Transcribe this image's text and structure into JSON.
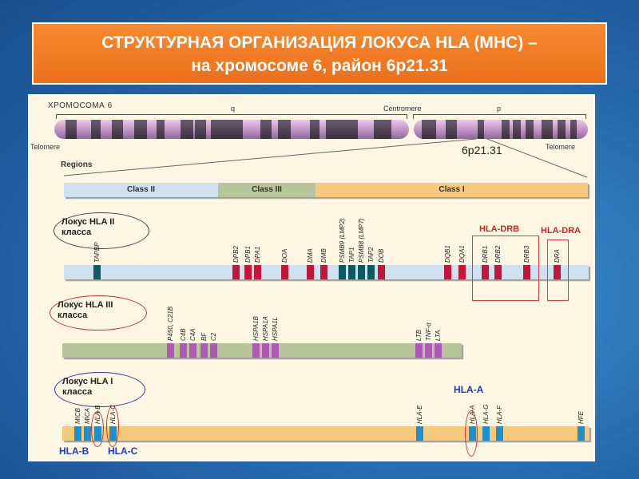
{
  "title": {
    "line1": "СТРУКТУРНАЯ ОРГАНИЗАЦИЯ ЛОКУСА HLA (МНС) –",
    "line2": "на хромосоме 6, район 6p21.31"
  },
  "chromosome": {
    "name": "ХРОМОСОМА 6",
    "q": "q",
    "p": "p",
    "centromere": "Centromere",
    "telomere_left": "Telomere",
    "telomere_right": "Telomere",
    "band": "6p21.31",
    "regions_label": "Regions"
  },
  "regions": [
    {
      "label": "Class II",
      "color": "#cfe0ee"
    },
    {
      "label": "Class III",
      "color": "#b8c49a"
    },
    {
      "label": "Class I",
      "color": "#f7c97a"
    }
  ],
  "class2": {
    "locus_label": "Локус HLA II",
    "locus_label2": "класса",
    "bar_color": "#cfe0ee",
    "group_drb": "HLA-DRB",
    "group_dra": "HLA-DRA",
    "genes": [
      {
        "n": "TAPBP",
        "c": "#0e5a60"
      },
      {
        "n": "DPB2",
        "c": "#c4153a"
      },
      {
        "n": "DPB1",
        "c": "#c4153a"
      },
      {
        "n": "DPA1",
        "c": "#c4153a"
      },
      {
        "n": "DOA",
        "c": "#c4153a"
      },
      {
        "n": "DMA",
        "c": "#c4153a"
      },
      {
        "n": "DMB",
        "c": "#c4153a"
      },
      {
        "n": "PSMB9 (LMP2)",
        "c": "#0e5a60"
      },
      {
        "n": "TAP1",
        "c": "#0e5a60"
      },
      {
        "n": "PSMB8 (LMP7)",
        "c": "#0e5a60"
      },
      {
        "n": "TAP2",
        "c": "#0e5a60"
      },
      {
        "n": "DOB",
        "c": "#c4153a"
      },
      {
        "n": "DQB1",
        "c": "#c4153a"
      },
      {
        "n": "DQA1",
        "c": "#c4153a"
      },
      {
        "n": "DRB1",
        "c": "#c4153a"
      },
      {
        "n": "DRB2",
        "c": "#c4153a"
      },
      {
        "n": "DRB3",
        "c": "#c4153a"
      },
      {
        "n": "DRA",
        "c": "#c4153a"
      }
    ]
  },
  "class3": {
    "locus_label": "Локус HLA III",
    "locus_label2": "класса",
    "bar_color": "#b8c49a",
    "genes": [
      {
        "n": "P450, C21B",
        "c": "#b058b8"
      },
      {
        "n": "C4B",
        "c": "#b058b8"
      },
      {
        "n": "C4A",
        "c": "#b058b8"
      },
      {
        "n": "BF",
        "c": "#b058b8"
      },
      {
        "n": "C2",
        "c": "#b058b8"
      },
      {
        "n": "HSPA1B",
        "c": "#b058b8"
      },
      {
        "n": "HSPA1A",
        "c": "#b058b8"
      },
      {
        "n": "HSPA1L",
        "c": "#b058b8"
      },
      {
        "n": "LTB",
        "c": "#b058b8"
      },
      {
        "n": "TNF-α",
        "c": "#b058b8"
      },
      {
        "n": "LTA",
        "c": "#b058b8"
      }
    ]
  },
  "class1": {
    "locus_label": "Локус HLA I",
    "locus_label2": "класса",
    "bar_color": "#f7c97a",
    "label_b": "HLA-B",
    "label_c": "HLA-C",
    "label_a": "HLA-A",
    "genes": [
      {
        "n": "MICB",
        "c": "#1a90d0"
      },
      {
        "n": "MICA",
        "c": "#1a90d0"
      },
      {
        "n": "HLA-B",
        "c": "#1a90d0"
      },
      {
        "n": "HLA-C",
        "c": "#1a90d0"
      },
      {
        "n": "HLA-E",
        "c": "#1a90d0"
      },
      {
        "n": "HLA-A",
        "c": "#1a90d0"
      },
      {
        "n": "HLA-G",
        "c": "#1a90d0"
      },
      {
        "n": "HLA-F",
        "c": "#1a90d0"
      },
      {
        "n": "HFE",
        "c": "#1a90d0"
      }
    ]
  }
}
